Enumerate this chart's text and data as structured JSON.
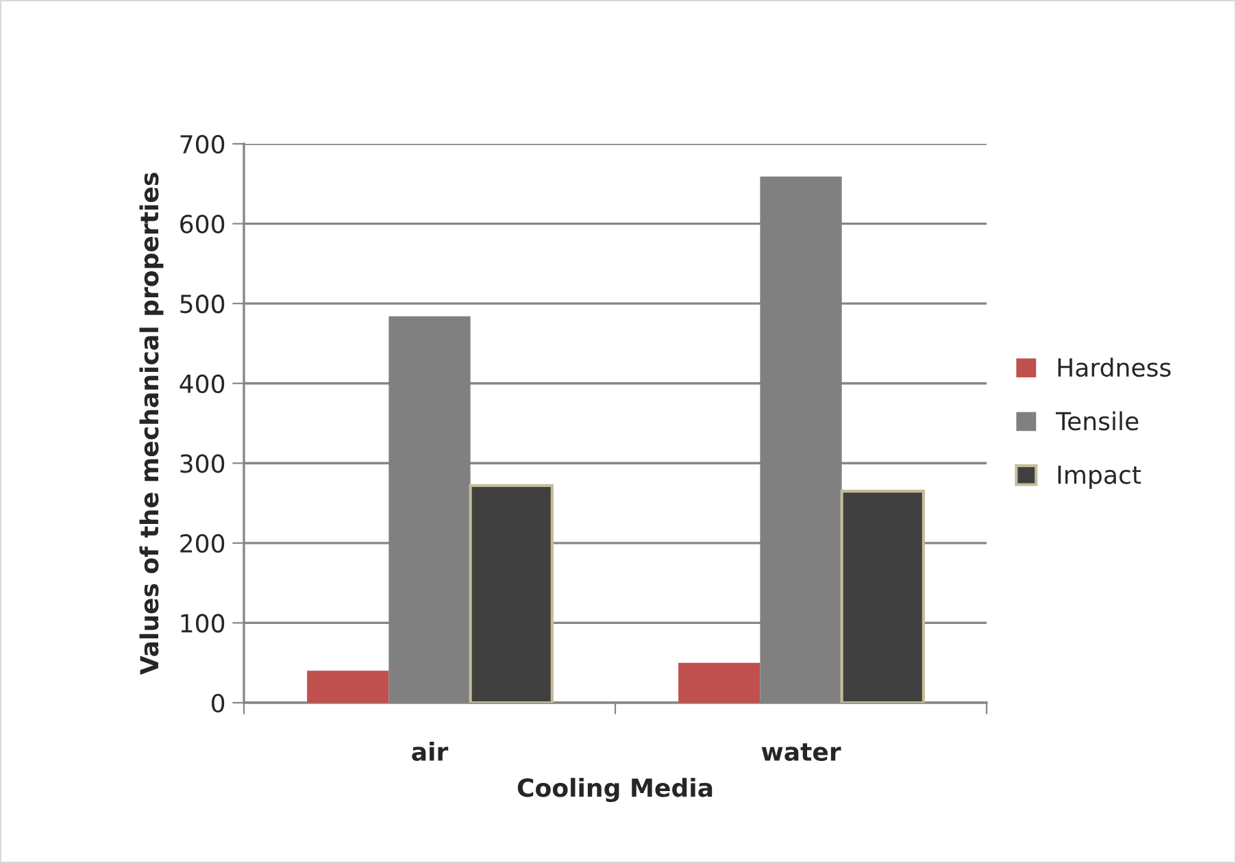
{
  "chart_data": {
    "type": "bar",
    "xlabel": "Cooling Media",
    "ylabel": "Values of the mechanical properties",
    "categories": [
      "air",
      "water"
    ],
    "series": [
      {
        "name": "Hardness",
        "color": "#c0504d",
        "values": [
          40,
          50
        ]
      },
      {
        "name": "Tensile",
        "color": "#808080",
        "values": [
          484,
          659
        ]
      },
      {
        "name": "Impact",
        "color": "#404040",
        "values": [
          272,
          265
        ]
      }
    ],
    "ylim": [
      0,
      700
    ],
    "yticks": [
      0,
      100,
      200,
      300,
      400,
      500,
      600,
      700
    ],
    "grid": "y",
    "legend": "right"
  }
}
